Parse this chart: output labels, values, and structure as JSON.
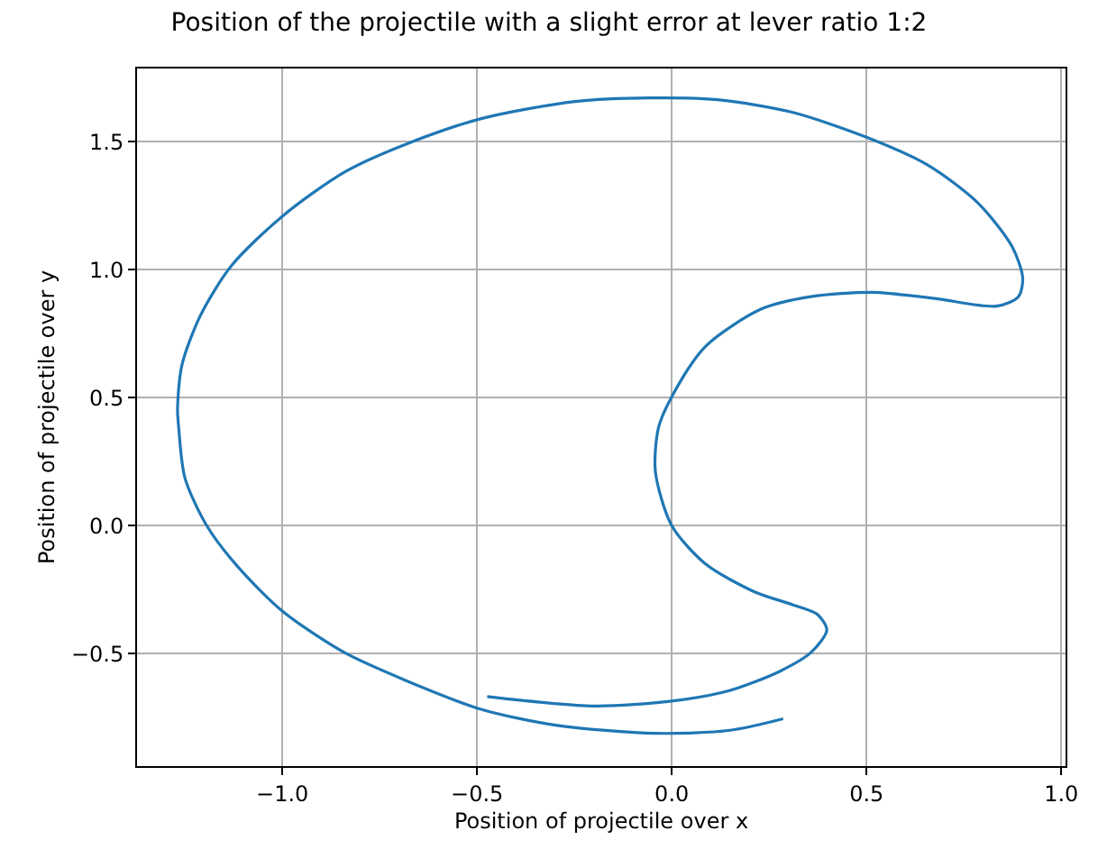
{
  "chart_data": {
    "type": "line",
    "title": "Position of the projectile with a slight error at lever ratio 1:2",
    "xlabel": "Position of projectile over x",
    "ylabel": "Position of projectile over y",
    "xlim": [
      -1.373,
      1.011
    ],
    "ylim": [
      -0.94,
      1.787
    ],
    "xticks": [
      {
        "value": -1.0,
        "label": "−1.0"
      },
      {
        "value": -0.5,
        "label": "−0.5"
      },
      {
        "value": 0.0,
        "label": "0.0"
      },
      {
        "value": 0.5,
        "label": "0.5"
      },
      {
        "value": 1.0,
        "label": "1.0"
      }
    ],
    "yticks": [
      {
        "value": -0.5,
        "label": "−0.5"
      },
      {
        "value": 0.0,
        "label": "0.0"
      },
      {
        "value": 0.5,
        "label": "0.5"
      },
      {
        "value": 1.0,
        "label": "1.0"
      },
      {
        "value": 1.5,
        "label": "1.5"
      }
    ],
    "grid": true,
    "marker": "none",
    "line_style": "solid",
    "series": [
      {
        "color": "#1f77b4",
        "x": [
          -0.474,
          -0.2,
          0,
          0.15,
          0.278,
          0.358,
          0.398,
          0.374,
          0.31,
          0.214,
          0.086,
          0,
          -0.042,
          -0.034,
          0,
          0.086,
          0.229,
          0.357,
          0.516,
          0.675,
          0.834,
          0.89,
          0.901,
          0.874,
          0.787,
          0.659,
          0.5,
          0.309,
          0.118,
          -0.057,
          -0.248,
          -0.487,
          -0.678,
          -0.838,
          -0.997,
          -1.13,
          -1.21,
          -1.258,
          -1.269,
          -1.266,
          -1.25,
          -1.194,
          -1.114,
          -1.0,
          -0.842,
          -0.682,
          -0.49,
          -0.298,
          -0.042,
          0.15,
          0.286
        ],
        "values": [
          -0.668,
          -0.705,
          -0.686,
          -0.644,
          -0.569,
          -0.495,
          -0.408,
          -0.347,
          -0.309,
          -0.26,
          -0.149,
          0,
          0.21,
          0.384,
          0.504,
          0.7,
          0.846,
          0.895,
          0.912,
          0.888,
          0.858,
          0.895,
          0.968,
          1.09,
          1.26,
          1.408,
          1.518,
          1.616,
          1.665,
          1.672,
          1.658,
          1.592,
          1.494,
          1.384,
          1.213,
          1.017,
          0.822,
          0.626,
          0.455,
          0.384,
          0.186,
          0,
          -0.161,
          -0.334,
          -0.495,
          -0.606,
          -0.718,
          -0.78,
          -0.812,
          -0.8,
          -0.755
        ]
      }
    ]
  }
}
